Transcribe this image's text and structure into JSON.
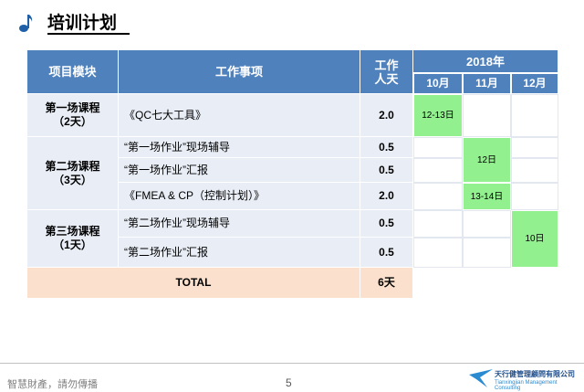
{
  "title": "培训计划",
  "table": {
    "header": {
      "module": "项目模块",
      "task": "工作事项",
      "days": [
        "工作",
        "人天"
      ],
      "year": "2018年",
      "months": [
        "10月",
        "11月",
        "12月"
      ]
    },
    "groups": [
      {
        "module": [
          "第一场课程",
          "（2天）"
        ],
        "rows": [
          {
            "task": "《QC七大工具》",
            "days": "2.0"
          }
        ]
      },
      {
        "module": [
          "第二场课程",
          "（3天）"
        ],
        "rows": [
          {
            "task": "“第一场作业”现场辅导",
            "days": "0.5"
          },
          {
            "task": "“第一场作业”汇报",
            "days": "0.5"
          },
          {
            "task": "《FMEA & CP（控制计划）》",
            "days": "2.0"
          }
        ]
      },
      {
        "module": [
          "第三场课程",
          "（1天）"
        ],
        "rows": [
          {
            "task": "“第二场作业”现场辅导",
            "days": "0.5"
          },
          {
            "task": "“第二场作业”汇报",
            "days": "0.5"
          }
        ]
      }
    ],
    "schedule": [
      "12-13日",
      "12日",
      "13-14日",
      "10日"
    ],
    "total": {
      "label": "TOTAL",
      "days": "6天"
    }
  },
  "footer": {
    "notice": "智慧財產，請勿傳播",
    "page": "5",
    "company": "天行健管理顧問有限公司",
    "company_en": "Tianxingjian Management Consulting"
  }
}
